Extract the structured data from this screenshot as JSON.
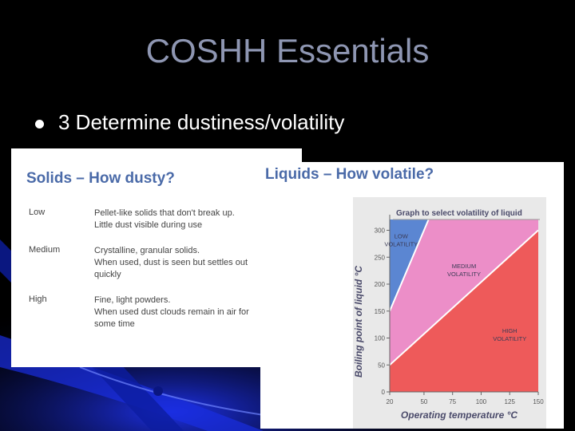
{
  "slide": {
    "title": "COSHH Essentials",
    "bullet": "3 Determine dustiness/volatility"
  },
  "solids": {
    "title": "Solids – How dusty?",
    "rows": [
      {
        "level": "Low",
        "lines": [
          "Pellet-like solids that don't break up.",
          "Little dust visible during use"
        ]
      },
      {
        "level": "Medium",
        "lines": [
          "Crystalline, granular solids.",
          "When used, dust is seen but settles out",
          "quickly"
        ]
      },
      {
        "level": "High",
        "lines": [
          "Fine, light powders.",
          "When used dust clouds remain in air for",
          "some time"
        ]
      }
    ]
  },
  "liquids": {
    "title": "Liquids – How volatile?"
  },
  "chart_data": {
    "type": "area",
    "title": "Graph to select volatility of liquid",
    "xlabel": "Operating temperature °C",
    "ylabel": "Boiling point of liquid °C",
    "x_ticks": [
      20,
      50,
      75,
      100,
      125,
      150
    ],
    "y_ticks": [
      0,
      50,
      100,
      150,
      200,
      250,
      300
    ],
    "xlim": [
      20,
      150
    ],
    "ylim": [
      0,
      320
    ],
    "boundaries": [
      {
        "name": "low-medium",
        "points": [
          [
            20,
            150
          ],
          [
            50,
            300
          ]
        ]
      },
      {
        "name": "medium-high",
        "points": [
          [
            20,
            50
          ],
          [
            150,
            300
          ]
        ]
      }
    ],
    "regions": [
      {
        "label_lines": [
          "LOW",
          "VOLATILITY"
        ],
        "color": "#5b86d2",
        "label_at": [
          30,
          285
        ]
      },
      {
        "label_lines": [
          "MEDIUM",
          "VOLATILITY"
        ],
        "color": "#ec8ec8",
        "label_at": [
          85,
          230
        ]
      },
      {
        "label_lines": [
          "HIGH",
          "VOLATILITY"
        ],
        "color": "#ee5a5a",
        "label_at": [
          125,
          110
        ]
      }
    ],
    "grid": false
  },
  "colors": {
    "title_color": "#8e96b2",
    "heading_color": "#4a6aa8",
    "low_region": "#5b86d2",
    "medium_region": "#ec8ec8",
    "high_region": "#ee5a5a"
  }
}
